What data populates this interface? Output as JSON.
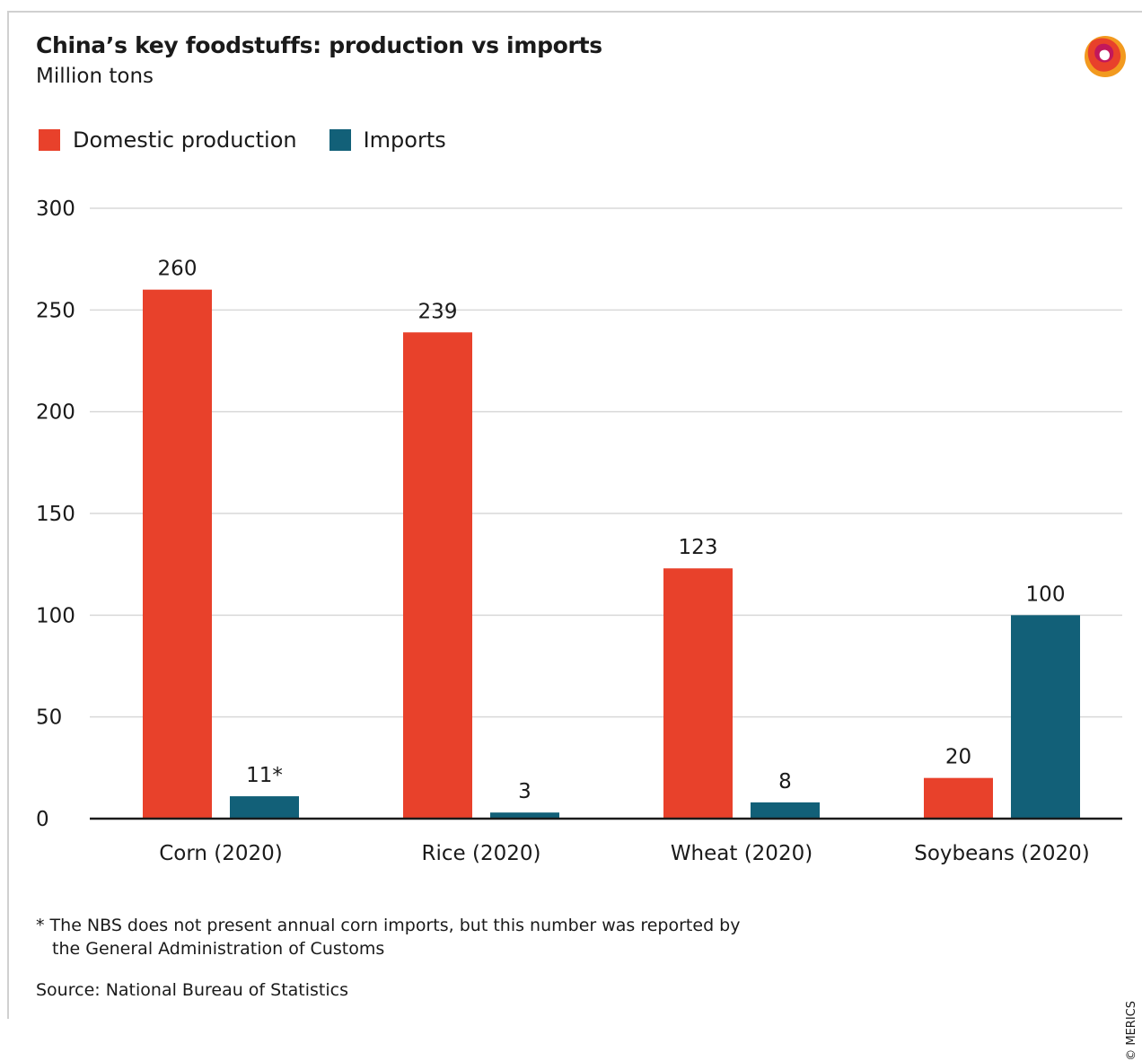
{
  "header": {
    "title": "China’s key foodstuffs: production vs imports",
    "subtitle": "Million tons"
  },
  "colors": {
    "domestic": "#e8412b",
    "imports": "#126078",
    "grid": "#d9d9d9",
    "axis": "#1a1a1a"
  },
  "logo_icon": "merics-logo-icon",
  "chart_data": {
    "type": "bar",
    "title": "China’s key foodstuffs: production vs imports",
    "subtitle": "Million tons",
    "categories": [
      "Corn (2020)",
      "Rice (2020)",
      "Wheat (2020)",
      "Soybeans (2020)"
    ],
    "series": [
      {
        "name": "Domestic production",
        "values": [
          260,
          239,
          123,
          20
        ],
        "labels": [
          "260",
          "239",
          "123",
          "20"
        ]
      },
      {
        "name": "Imports",
        "values": [
          11,
          3,
          8,
          100
        ],
        "labels": [
          "11*",
          "3",
          "8",
          "100"
        ]
      }
    ],
    "ylim": [
      0,
      300
    ],
    "yticks": [
      0,
      50,
      100,
      150,
      200,
      250,
      300
    ],
    "grid": true,
    "legend": "top-left"
  },
  "footnote": {
    "line1": "* The NBS does not present annual corn imports, but this number was reported by",
    "line2": "the General Administration of Customs"
  },
  "source": "Source: National Bureau of Statistics",
  "copyright": "© MERICS"
}
